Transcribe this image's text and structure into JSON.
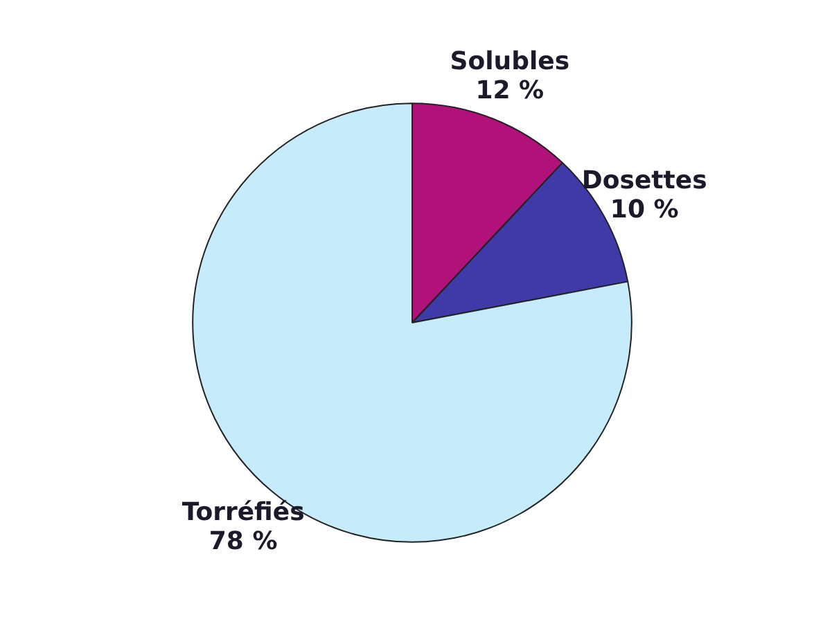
{
  "chart_data": {
    "type": "pie",
    "categories": [
      "Solubles",
      "Dosettes",
      "Torréfiés"
    ],
    "values": [
      12,
      10,
      78
    ],
    "colors": [
      "#b0127a",
      "#3f3aa8",
      "#c6ecfb"
    ],
    "value_labels": [
      "12 %",
      "10 %",
      "78 %"
    ]
  }
}
